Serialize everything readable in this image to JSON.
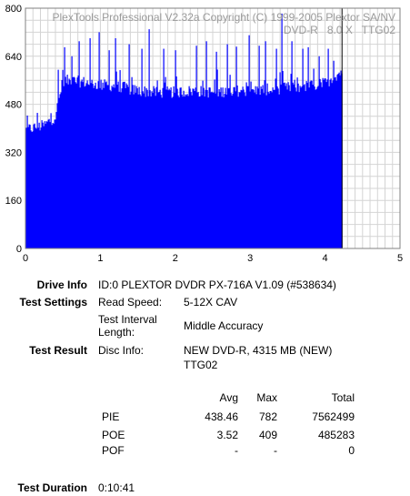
{
  "chart_data": {
    "type": "bar",
    "title": "PlexTools Professional V2.32a Copyright (C) 1999-2005 Plextor SA/NV",
    "subtitle": "DVD-R   8.0 X   TTG02",
    "xlim": [
      0,
      5
    ],
    "ylim": [
      0,
      800
    ],
    "x_ticks": [
      "0",
      "1",
      "2",
      "3",
      "4",
      "5"
    ],
    "y_ticks": [
      "0",
      "160",
      "320",
      "480",
      "640",
      "800"
    ],
    "grid": true,
    "bar_color": "#0000ff",
    "series": [
      {
        "x": [
          0.0,
          0.25,
          0.4,
          0.5,
          0.75,
          1.0,
          1.25,
          1.5,
          1.75,
          2.0,
          2.25,
          2.5,
          2.75,
          3.0,
          3.25,
          3.5,
          3.75,
          4.0,
          4.22
        ],
        "y": [
          395,
          410,
          440,
          560,
          555,
          545,
          540,
          525,
          520,
          520,
          525,
          520,
          525,
          525,
          530,
          535,
          540,
          550,
          590
        ]
      }
    ],
    "spikes": [
      {
        "x": 0.44,
        "y": 595
      },
      {
        "x": 0.52,
        "y": 670
      },
      {
        "x": 0.62,
        "y": 640
      },
      {
        "x": 0.72,
        "y": 690
      },
      {
        "x": 0.86,
        "y": 700
      },
      {
        "x": 0.98,
        "y": 720
      },
      {
        "x": 1.12,
        "y": 660
      },
      {
        "x": 1.2,
        "y": 700
      },
      {
        "x": 1.38,
        "y": 680
      },
      {
        "x": 1.55,
        "y": 665
      },
      {
        "x": 1.65,
        "y": 730
      },
      {
        "x": 1.85,
        "y": 665
      },
      {
        "x": 2.0,
        "y": 660
      },
      {
        "x": 2.28,
        "y": 675
      },
      {
        "x": 2.42,
        "y": 690
      },
      {
        "x": 2.55,
        "y": 655
      },
      {
        "x": 2.7,
        "y": 680
      },
      {
        "x": 2.82,
        "y": 672
      },
      {
        "x": 2.98,
        "y": 710
      },
      {
        "x": 3.12,
        "y": 675
      },
      {
        "x": 3.2,
        "y": 690
      },
      {
        "x": 3.35,
        "y": 665
      },
      {
        "x": 3.42,
        "y": 782
      },
      {
        "x": 3.55,
        "y": 690
      },
      {
        "x": 3.7,
        "y": 665
      },
      {
        "x": 3.78,
        "y": 670
      },
      {
        "x": 3.92,
        "y": 640
      },
      {
        "x": 4.04,
        "y": 665
      },
      {
        "x": 4.12,
        "y": 625
      }
    ],
    "end_marker_x": 4.22
  },
  "info": {
    "drive_info_label": "Drive Info",
    "drive_info_value": "ID:0 PLEXTOR DVDR PX-716A V1.09 (#538634)",
    "test_settings_label": "Test Settings",
    "read_speed_label": "Read Speed:",
    "read_speed_value": "5-12X CAV",
    "interval_label_1": "Test Interval",
    "interval_label_2": "Length:",
    "interval_value": "Middle Accuracy",
    "test_result_label": "Test Result",
    "disc_info_label": "Disc Info:",
    "disc_info_value_1": "NEW DVD-R, 4315 MB (NEW)",
    "disc_info_value_2": "TTG02",
    "test_duration_label": "Test Duration",
    "test_duration_value": "0:10:41"
  },
  "results": {
    "headers": {
      "avg": "Avg",
      "max": "Max",
      "total": "Total"
    },
    "rows": [
      {
        "name": "PIE",
        "avg": "438.46",
        "max": "782",
        "total": "7562499"
      },
      {
        "name": "POE",
        "avg": "3.52",
        "max": "409",
        "total": "485283"
      },
      {
        "name": "POF",
        "avg": "-",
        "max": "-",
        "total": "0"
      }
    ]
  }
}
